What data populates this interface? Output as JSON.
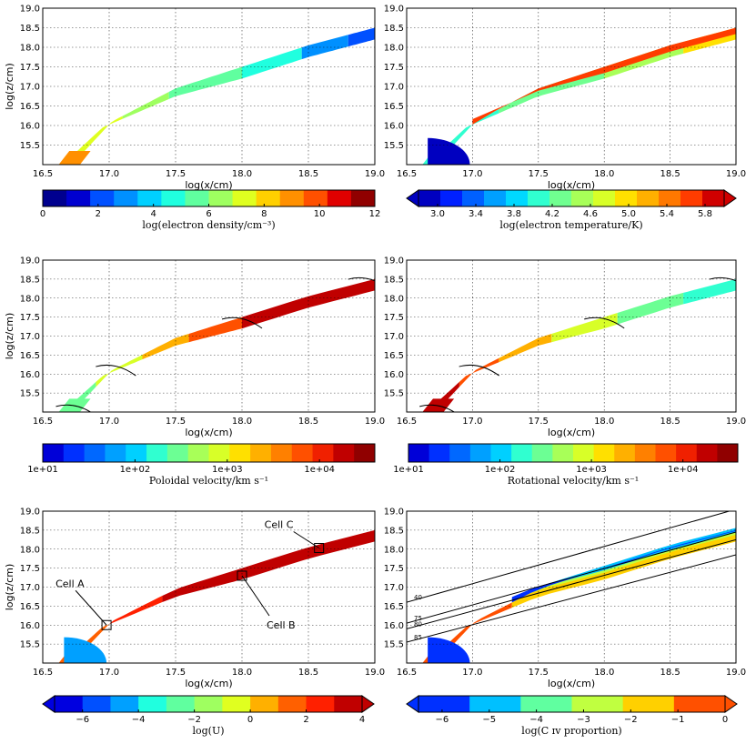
{
  "chart_data": [
    {
      "type": "heatmap",
      "panel": "top-left",
      "xlabel": "log(x/cm)",
      "ylabel": "log(z/cm)",
      "xlim": [
        16.5,
        19.0
      ],
      "ylim": [
        15.0,
        19.0
      ],
      "xticks": [
        "16.5",
        "17.0",
        "17.5",
        "18.0",
        "18.5",
        "19.0"
      ],
      "yticks": [
        "15.5",
        "16.0",
        "16.5",
        "17.0",
        "17.5",
        "18.0",
        "18.5",
        "19.0"
      ],
      "colorbar": {
        "label": "log(electron density/cm⁻³)",
        "min": 0,
        "max": 12,
        "ticks": [
          "0",
          "2",
          "4",
          "6",
          "8",
          "10",
          "12"
        ],
        "colors": [
          "#00008f",
          "#0000d0",
          "#0050ff",
          "#0090ff",
          "#00d0ff",
          "#20ffdf",
          "#60ff9f",
          "#9fff60",
          "#dfff20",
          "#ffd000",
          "#ff9000",
          "#ff5000",
          "#e00000",
          "#900000"
        ],
        "extend": "neither"
      },
      "band": {
        "inner": [
          [
            16.65,
            15.0
          ],
          [
            16.95,
            15.95
          ],
          [
            17.5,
            16.75
          ],
          [
            18.0,
            17.2
          ],
          [
            18.5,
            17.75
          ],
          [
            19.0,
            18.2
          ]
        ],
        "outer": [
          [
            16.72,
            15.0
          ],
          [
            17.02,
            16.1
          ],
          [
            17.5,
            16.95
          ],
          [
            18.0,
            17.5
          ],
          [
            18.5,
            18.05
          ],
          [
            19.0,
            18.5
          ]
        ]
      },
      "segments": [
        {
          "x0": 16.6,
          "x1": 16.75,
          "value": 8.6
        },
        {
          "x0": 16.75,
          "x1": 17.1,
          "value": 7.6
        },
        {
          "x0": 17.1,
          "x1": 17.45,
          "value": 6.4
        },
        {
          "x0": 17.45,
          "x1": 18.0,
          "value": 5.4
        },
        {
          "x0": 18.0,
          "x1": 18.45,
          "value": 4.3
        },
        {
          "x0": 18.45,
          "x1": 18.8,
          "value": 3.2
        },
        {
          "x0": 18.8,
          "x1": 19.0,
          "value": 2.4
        }
      ],
      "extra_layers": []
    },
    {
      "type": "heatmap",
      "panel": "top-right",
      "xlabel": "log(x/cm)",
      "ylabel": "",
      "xlim": [
        16.5,
        19.0
      ],
      "ylim": [
        15.0,
        19.0
      ],
      "xticks": [
        "16.5",
        "17.0",
        "17.5",
        "18.0",
        "18.5",
        "19.0"
      ],
      "yticks": [
        "15.5",
        "16.0",
        "16.5",
        "17.0",
        "17.5",
        "18.0",
        "18.5",
        "19.0"
      ],
      "colorbar": {
        "label": "log(electron temperature/K)",
        "min": 2.8,
        "max": 6.0,
        "ticks": [
          "3.0",
          "3.4",
          "3.8",
          "4.2",
          "4.6",
          "5.0",
          "5.4",
          "5.8"
        ],
        "colors": [
          "#0000c0",
          "#0020ff",
          "#0060ff",
          "#00a0ff",
          "#00d8ff",
          "#30ffd0",
          "#70ff90",
          "#a8ff58",
          "#d8ff28",
          "#ffe000",
          "#ffb000",
          "#ff7800",
          "#ff3c00",
          "#d00000"
        ],
        "extend": "both"
      },
      "band": {
        "inner": [
          [
            16.65,
            15.0
          ],
          [
            16.95,
            15.95
          ],
          [
            17.5,
            16.75
          ],
          [
            18.0,
            17.2
          ],
          [
            18.5,
            17.75
          ],
          [
            19.0,
            18.2
          ]
        ],
        "outer": [
          [
            16.72,
            15.0
          ],
          [
            17.02,
            16.1
          ],
          [
            17.5,
            16.95
          ],
          [
            18.0,
            17.5
          ],
          [
            18.5,
            18.05
          ],
          [
            19.0,
            18.5
          ]
        ]
      },
      "segments": [
        {
          "x0": 16.6,
          "x1": 17.2,
          "value": 4.0
        },
        {
          "x0": 17.2,
          "x1": 18.0,
          "value": 4.3
        },
        {
          "x0": 18.0,
          "x1": 18.6,
          "value": 4.6
        },
        {
          "x0": 18.6,
          "x1": 19.0,
          "value": 4.9
        }
      ],
      "extra_layers": [
        {
          "shape": "edge",
          "value": 5.6
        },
        {
          "shape": "core",
          "value": 2.9
        }
      ]
    },
    {
      "type": "heatmap",
      "panel": "middle-left",
      "xlabel": "log(x/cm)",
      "ylabel": "log(z/cm)",
      "xlim": [
        16.5,
        19.0
      ],
      "ylim": [
        15.0,
        19.0
      ],
      "xticks": [
        "16.5",
        "17.0",
        "17.5",
        "18.0",
        "18.5",
        "19.0"
      ],
      "yticks": [
        "15.5",
        "16.0",
        "16.5",
        "17.0",
        "17.5",
        "18.0",
        "18.5",
        "19.0"
      ],
      "colorbar": {
        "label": "Poloidal velocity/km s⁻¹",
        "scale": "log",
        "min": 1,
        "max": 4.6,
        "ticks": [
          "1e+01",
          "1e+02",
          "1e+03",
          "1e+04"
        ],
        "tick_positions": [
          1,
          2,
          3,
          4
        ],
        "colors": [
          "#0000d8",
          "#0030ff",
          "#0068ff",
          "#00a0ff",
          "#00d0ff",
          "#30ffd0",
          "#6cff94",
          "#a8ff58",
          "#d8ff28",
          "#ffe000",
          "#ffb000",
          "#ff8000",
          "#ff5000",
          "#f02000",
          "#c00000",
          "#900000"
        ],
        "extend": "neither"
      },
      "band": {
        "inner": [
          [
            16.65,
            15.0
          ],
          [
            16.95,
            15.95
          ],
          [
            17.5,
            16.75
          ],
          [
            18.0,
            17.2
          ],
          [
            18.5,
            17.75
          ],
          [
            19.0,
            18.2
          ]
        ],
        "outer": [
          [
            16.72,
            15.0
          ],
          [
            17.02,
            16.1
          ],
          [
            17.5,
            16.95
          ],
          [
            18.0,
            17.5
          ],
          [
            18.5,
            18.05
          ],
          [
            19.0,
            18.5
          ]
        ]
      },
      "segments": [
        {
          "x0": 16.6,
          "x1": 16.9,
          "value": 2.5
        },
        {
          "x0": 16.9,
          "x1": 17.25,
          "value": 2.9
        },
        {
          "x0": 17.25,
          "x1": 17.6,
          "value": 3.3
        },
        {
          "x0": 17.6,
          "x1": 18.0,
          "value": 3.7
        },
        {
          "x0": 18.0,
          "x1": 19.0,
          "value": 4.2
        }
      ],
      "extra_layers": [
        {
          "shape": "arcs"
        }
      ]
    },
    {
      "type": "heatmap",
      "panel": "middle-right",
      "xlabel": "log(x/cm)",
      "ylabel": "",
      "xlim": [
        16.5,
        19.0
      ],
      "ylim": [
        15.0,
        19.0
      ],
      "xticks": [
        "16.5",
        "17.0",
        "17.5",
        "18.0",
        "18.5",
        "19.0"
      ],
      "yticks": [
        "15.5",
        "16.0",
        "16.5",
        "17.0",
        "17.5",
        "18.0",
        "18.5",
        "19.0"
      ],
      "colorbar": {
        "label": "Rotational velocity/km s⁻¹",
        "scale": "log",
        "min": 1,
        "max": 4.6,
        "ticks": [
          "1e+01",
          "1e+02",
          "1e+03",
          "1e+04"
        ],
        "tick_positions": [
          1,
          2,
          3,
          4
        ],
        "colors": [
          "#0000d8",
          "#0030ff",
          "#0068ff",
          "#00a0ff",
          "#00d0ff",
          "#30ffd0",
          "#6cff94",
          "#a8ff58",
          "#d8ff28",
          "#ffe000",
          "#ffb000",
          "#ff8000",
          "#ff5000",
          "#f02000",
          "#c00000",
          "#900000"
        ],
        "extend": "neither"
      },
      "band": {
        "inner": [
          [
            16.65,
            15.0
          ],
          [
            16.95,
            15.95
          ],
          [
            17.5,
            16.75
          ],
          [
            18.0,
            17.2
          ],
          [
            18.5,
            17.75
          ],
          [
            19.0,
            18.2
          ]
        ],
        "outer": [
          [
            16.72,
            15.0
          ],
          [
            17.02,
            16.1
          ],
          [
            17.5,
            16.95
          ],
          [
            18.0,
            17.5
          ],
          [
            18.5,
            18.05
          ],
          [
            19.0,
            18.5
          ]
        ]
      },
      "segments": [
        {
          "x0": 16.6,
          "x1": 16.9,
          "value": 4.15
        },
        {
          "x0": 16.9,
          "x1": 17.2,
          "value": 3.8
        },
        {
          "x0": 17.2,
          "x1": 17.6,
          "value": 3.4
        },
        {
          "x0": 17.6,
          "x1": 18.1,
          "value": 3.0
        },
        {
          "x0": 18.1,
          "x1": 18.6,
          "value": 2.55
        },
        {
          "x0": 18.6,
          "x1": 19.0,
          "value": 2.3
        }
      ],
      "extra_layers": [
        {
          "shape": "arcs"
        }
      ]
    },
    {
      "type": "heatmap",
      "panel": "bottom-left",
      "xlabel": "log(x/cm)",
      "ylabel": "log(z/cm)",
      "xlim": [
        16.5,
        19.0
      ],
      "ylim": [
        15.0,
        19.0
      ],
      "xticks": [
        "16.5",
        "17.0",
        "17.5",
        "18.0",
        "18.5",
        "19.0"
      ],
      "yticks": [
        "15.5",
        "16.0",
        "16.5",
        "17.0",
        "17.5",
        "18.0",
        "18.5",
        "19.0"
      ],
      "colorbar": {
        "label": "log(U)",
        "min": -7,
        "max": 4,
        "ticks": [
          "−6",
          "−4",
          "−2",
          "0",
          "2",
          "4"
        ],
        "colors": [
          "#0000e0",
          "#0050ff",
          "#00a0ff",
          "#20ffdf",
          "#60ff9f",
          "#9fff60",
          "#e0ff20",
          "#ffb000",
          "#ff6000",
          "#ff2000",
          "#c00000"
        ],
        "extend": "both"
      },
      "band": {
        "inner": [
          [
            16.65,
            15.0
          ],
          [
            16.95,
            15.95
          ],
          [
            17.5,
            16.75
          ],
          [
            18.0,
            17.2
          ],
          [
            18.5,
            17.75
          ],
          [
            19.0,
            18.2
          ]
        ],
        "outer": [
          [
            16.72,
            15.0
          ],
          [
            17.02,
            16.1
          ],
          [
            17.5,
            16.95
          ],
          [
            18.0,
            17.5
          ],
          [
            18.5,
            18.05
          ],
          [
            19.0,
            18.5
          ]
        ]
      },
      "segments": [
        {
          "x0": 16.6,
          "x1": 17.0,
          "value": 1.5
        },
        {
          "x0": 17.0,
          "x1": 17.4,
          "value": 2.4
        },
        {
          "x0": 17.4,
          "x1": 19.0,
          "value": 3.2
        }
      ],
      "extra_layers": [
        {
          "shape": "bluecore",
          "value": -4.5
        }
      ],
      "annotations": [
        {
          "label": "Cell A",
          "x": 16.98,
          "y": 16.0
        },
        {
          "label": "Cell B",
          "x": 18.0,
          "y": 17.3
        },
        {
          "label": "Cell C",
          "x": 18.58,
          "y": 18.03
        }
      ]
    },
    {
      "type": "heatmap",
      "panel": "bottom-right",
      "xlabel": "log(x/cm)",
      "ylabel": "",
      "xlim": [
        16.5,
        19.0
      ],
      "ylim": [
        15.0,
        19.0
      ],
      "xticks": [
        "16.5",
        "17.0",
        "17.5",
        "18.0",
        "18.5",
        "19.0"
      ],
      "yticks": [
        "15.5",
        "16.0",
        "16.5",
        "17.0",
        "17.5",
        "18.0",
        "18.5",
        "19.0"
      ],
      "colorbar": {
        "label": "log(C ɪv proportion)",
        "min": -6.5,
        "max": 0,
        "ticks": [
          "−6",
          "−5",
          "−4",
          "−3",
          "−2",
          "−1",
          "0"
        ],
        "colors": [
          "#0030ff",
          "#00c0ff",
          "#60ffa0",
          "#c0ff40",
          "#ffd000",
          "#ff5000"
        ],
        "extend": "both"
      },
      "band": {
        "inner": [
          [
            16.65,
            15.0
          ],
          [
            16.95,
            15.95
          ],
          [
            17.5,
            16.75
          ],
          [
            18.0,
            17.2
          ],
          [
            18.5,
            17.75
          ],
          [
            19.0,
            18.2
          ]
        ],
        "outer": [
          [
            16.72,
            15.0
          ],
          [
            17.02,
            16.1
          ],
          [
            17.5,
            16.95
          ],
          [
            18.0,
            17.5
          ],
          [
            18.5,
            18.05
          ],
          [
            19.0,
            18.5
          ]
        ]
      },
      "segments": [
        {
          "x0": 16.6,
          "x1": 17.3,
          "value": -0.8
        },
        {
          "x0": 17.3,
          "x1": 19.0,
          "value": -2.0
        }
      ],
      "extra_layers": [
        {
          "shape": "cstreaks"
        }
      ],
      "sightlines": [
        {
          "label": "40",
          "y0": 16.6,
          "y1": 19.05
        },
        {
          "label": "75",
          "y0": 16.05,
          "y1": 18.45
        },
        {
          "label": "80",
          "y0": 15.9,
          "y1": 18.25
        },
        {
          "label": "85",
          "y0": 15.55,
          "y1": 17.85
        }
      ]
    }
  ]
}
